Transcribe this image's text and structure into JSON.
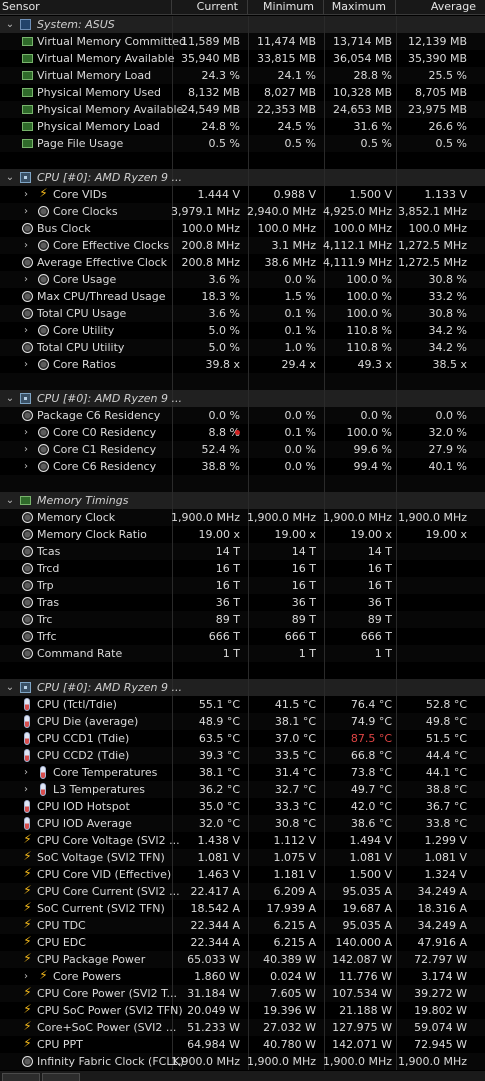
{
  "columns": [
    "Sensor",
    "Current",
    "Minimum",
    "Maximum",
    "Average"
  ],
  "rows": [
    {
      "kind": "group",
      "icon": "chip",
      "label": "System: ASUS"
    },
    {
      "kind": "item",
      "icon": "ram",
      "label": "Virtual Memory Committed",
      "values": [
        "11,589 MB",
        "11,474 MB",
        "13,714 MB",
        "12,139 MB"
      ]
    },
    {
      "kind": "item",
      "icon": "ram",
      "label": "Virtual Memory Available",
      "values": [
        "35,940 MB",
        "33,815 MB",
        "36,054 MB",
        "35,390 MB"
      ]
    },
    {
      "kind": "item",
      "icon": "ram",
      "label": "Virtual Memory Load",
      "values": [
        "24.3 %",
        "24.1 %",
        "28.8 %",
        "25.5 %"
      ]
    },
    {
      "kind": "item",
      "icon": "ram",
      "label": "Physical Memory Used",
      "values": [
        "8,132 MB",
        "8,027 MB",
        "10,328 MB",
        "8,705 MB"
      ]
    },
    {
      "kind": "item",
      "icon": "ram",
      "label": "Physical Memory Available",
      "values": [
        "24,549 MB",
        "22,353 MB",
        "24,653 MB",
        "23,975 MB"
      ]
    },
    {
      "kind": "item",
      "icon": "ram",
      "label": "Physical Memory Load",
      "values": [
        "24.8 %",
        "24.5 %",
        "31.6 %",
        "26.6 %"
      ]
    },
    {
      "kind": "item",
      "icon": "ram",
      "label": "Page File Usage",
      "values": [
        "0.5 %",
        "0.5 %",
        "0.5 %",
        "0.5 %"
      ]
    },
    {
      "kind": "spacer"
    },
    {
      "kind": "group",
      "icon": "cpu",
      "label": "CPU [#0]: AMD Ryzen 9 ..."
    },
    {
      "kind": "item",
      "expand": true,
      "icon": "bolt",
      "label": "Core VIDs",
      "values": [
        "1.444 V",
        "0.988 V",
        "1.500 V",
        "1.133 V"
      ]
    },
    {
      "kind": "item",
      "expand": true,
      "icon": "circ",
      "label": "Core Clocks",
      "values": [
        "3,979.1 MHz",
        "2,940.0 MHz",
        "4,925.0 MHz",
        "3,852.1 MHz"
      ]
    },
    {
      "kind": "item",
      "icon": "circ",
      "label": "Bus Clock",
      "values": [
        "100.0 MHz",
        "100.0 MHz",
        "100.0 MHz",
        "100.0 MHz"
      ]
    },
    {
      "kind": "item",
      "expand": true,
      "icon": "circ",
      "label": "Core Effective Clocks",
      "values": [
        "200.8 MHz",
        "3.1 MHz",
        "4,112.1 MHz",
        "1,272.5 MHz"
      ]
    },
    {
      "kind": "item",
      "icon": "circ",
      "label": "Average Effective Clock",
      "values": [
        "200.8 MHz",
        "38.6 MHz",
        "4,111.9 MHz",
        "1,272.5 MHz"
      ]
    },
    {
      "kind": "item",
      "expand": true,
      "icon": "circ",
      "label": "Core Usage",
      "values": [
        "3.6 %",
        "0.0 %",
        "100.0 %",
        "30.8 %"
      ]
    },
    {
      "kind": "item",
      "icon": "circ",
      "label": "Max CPU/Thread Usage",
      "values": [
        "18.3 %",
        "1.5 %",
        "100.0 %",
        "33.2 %"
      ]
    },
    {
      "kind": "item",
      "icon": "circ",
      "label": "Total CPU Usage",
      "values": [
        "3.6 %",
        "0.1 %",
        "100.0 %",
        "30.8 %"
      ]
    },
    {
      "kind": "item",
      "expand": true,
      "icon": "circ",
      "label": "Core Utility",
      "values": [
        "5.0 %",
        "0.1 %",
        "110.8 %",
        "34.2 %"
      ]
    },
    {
      "kind": "item",
      "icon": "circ",
      "label": "Total CPU Utility",
      "values": [
        "5.0 %",
        "1.0 %",
        "110.8 %",
        "34.2 %"
      ]
    },
    {
      "kind": "item",
      "expand": true,
      "icon": "circ",
      "label": "Core Ratios",
      "values": [
        "39.8 x",
        "29.4 x",
        "49.3 x",
        "38.5 x"
      ]
    },
    {
      "kind": "spacer"
    },
    {
      "kind": "group",
      "icon": "cpu",
      "label": "CPU [#0]: AMD Ryzen 9 ..."
    },
    {
      "kind": "item",
      "icon": "circ",
      "label": "Package C6 Residency",
      "values": [
        "0.0 %",
        "0.0 %",
        "0.0 %",
        "0.0 %"
      ]
    },
    {
      "kind": "item",
      "expand": true,
      "icon": "circ",
      "label": "Core C0 Residency",
      "values": [
        "8.8 %",
        "0.1 %",
        "100.0 %",
        "32.0 %"
      ],
      "flag": true
    },
    {
      "kind": "item",
      "expand": true,
      "icon": "circ",
      "label": "Core C1 Residency",
      "values": [
        "52.4 %",
        "0.0 %",
        "99.6 %",
        "27.9 %"
      ]
    },
    {
      "kind": "item",
      "expand": true,
      "icon": "circ",
      "label": "Core C6 Residency",
      "values": [
        "38.8 %",
        "0.0 %",
        "99.4 %",
        "40.1 %"
      ]
    },
    {
      "kind": "spacer"
    },
    {
      "kind": "group",
      "icon": "ram",
      "label": "Memory Timings"
    },
    {
      "kind": "item",
      "icon": "circ",
      "label": "Memory Clock",
      "values": [
        "1,900.0 MHz",
        "1,900.0 MHz",
        "1,900.0 MHz",
        "1,900.0 MHz"
      ]
    },
    {
      "kind": "item",
      "icon": "circ",
      "label": "Memory Clock Ratio",
      "values": [
        "19.00 x",
        "19.00 x",
        "19.00 x",
        "19.00 x"
      ]
    },
    {
      "kind": "item",
      "icon": "circ",
      "label": "Tcas",
      "values": [
        "14 T",
        "14 T",
        "14 T",
        ""
      ]
    },
    {
      "kind": "item",
      "icon": "circ",
      "label": "Trcd",
      "values": [
        "16 T",
        "16 T",
        "16 T",
        ""
      ]
    },
    {
      "kind": "item",
      "icon": "circ",
      "label": "Trp",
      "values": [
        "16 T",
        "16 T",
        "16 T",
        ""
      ]
    },
    {
      "kind": "item",
      "icon": "circ",
      "label": "Tras",
      "values": [
        "36 T",
        "36 T",
        "36 T",
        ""
      ]
    },
    {
      "kind": "item",
      "icon": "circ",
      "label": "Trc",
      "values": [
        "89 T",
        "89 T",
        "89 T",
        ""
      ]
    },
    {
      "kind": "item",
      "icon": "circ",
      "label": "Trfc",
      "values": [
        "666 T",
        "666 T",
        "666 T",
        ""
      ]
    },
    {
      "kind": "item",
      "icon": "circ",
      "label": "Command Rate",
      "values": [
        "1 T",
        "1 T",
        "1 T",
        ""
      ]
    },
    {
      "kind": "spacer"
    },
    {
      "kind": "group",
      "icon": "cpu",
      "label": "CPU [#0]: AMD Ryzen 9 ..."
    },
    {
      "kind": "item",
      "icon": "thermo",
      "label": "CPU (Tctl/Tdie)",
      "values": [
        "55.1 °C",
        "41.5 °C",
        "76.4 °C",
        "52.8 °C"
      ]
    },
    {
      "kind": "item",
      "icon": "thermo",
      "label": "CPU Die (average)",
      "values": [
        "48.9 °C",
        "38.1 °C",
        "74.9 °C",
        "49.8 °C"
      ]
    },
    {
      "kind": "item",
      "icon": "thermo",
      "label": "CPU CCD1 (Tdie)",
      "values": [
        "63.5 °C",
        "37.0 °C",
        "87.5 °C",
        "51.5 °C"
      ],
      "red_col": 2
    },
    {
      "kind": "item",
      "icon": "thermo",
      "label": "CPU CCD2 (Tdie)",
      "values": [
        "39.3 °C",
        "33.5 °C",
        "66.8 °C",
        "44.4 °C"
      ]
    },
    {
      "kind": "item",
      "expand": true,
      "icon": "thermo",
      "label": "Core Temperatures",
      "values": [
        "38.1 °C",
        "31.4 °C",
        "73.8 °C",
        "44.1 °C"
      ]
    },
    {
      "kind": "item",
      "expand": true,
      "icon": "thermo",
      "label": "L3 Temperatures",
      "values": [
        "36.2 °C",
        "32.7 °C",
        "49.7 °C",
        "38.8 °C"
      ]
    },
    {
      "kind": "item",
      "icon": "thermo",
      "label": "CPU IOD Hotspot",
      "values": [
        "35.0 °C",
        "33.3 °C",
        "42.0 °C",
        "36.7 °C"
      ]
    },
    {
      "kind": "item",
      "icon": "thermo",
      "label": "CPU IOD Average",
      "values": [
        "32.0 °C",
        "30.8 °C",
        "38.6 °C",
        "33.8 °C"
      ]
    },
    {
      "kind": "item",
      "icon": "bolt",
      "label": "CPU Core Voltage (SVI2 ...",
      "values": [
        "1.438 V",
        "1.112 V",
        "1.494 V",
        "1.299 V"
      ]
    },
    {
      "kind": "item",
      "icon": "bolt",
      "label": "SoC Voltage (SVI2 TFN)",
      "values": [
        "1.081 V",
        "1.075 V",
        "1.081 V",
        "1.081 V"
      ]
    },
    {
      "kind": "item",
      "icon": "bolt",
      "label": "CPU Core VID (Effective)",
      "values": [
        "1.463 V",
        "1.181 V",
        "1.500 V",
        "1.324 V"
      ]
    },
    {
      "kind": "item",
      "icon": "bolt",
      "label": "CPU Core Current (SVI2 ...",
      "values": [
        "22.417 A",
        "6.209 A",
        "95.035 A",
        "34.249 A"
      ]
    },
    {
      "kind": "item",
      "icon": "bolt",
      "label": "SoC Current (SVI2 TFN)",
      "values": [
        "18.542 A",
        "17.939 A",
        "19.687 A",
        "18.316 A"
      ]
    },
    {
      "kind": "item",
      "icon": "bolt",
      "label": "CPU TDC",
      "values": [
        "22.344 A",
        "6.215 A",
        "95.035 A",
        "34.249 A"
      ]
    },
    {
      "kind": "item",
      "icon": "bolt",
      "label": "CPU EDC",
      "values": [
        "22.344 A",
        "6.215 A",
        "140.000 A",
        "47.916 A"
      ]
    },
    {
      "kind": "item",
      "icon": "bolt",
      "label": "CPU Package Power",
      "values": [
        "65.033 W",
        "40.389 W",
        "142.087 W",
        "72.797 W"
      ]
    },
    {
      "kind": "item",
      "expand": true,
      "icon": "bolt",
      "label": "Core Powers",
      "values": [
        "1.860 W",
        "0.024 W",
        "11.776 W",
        "3.174 W"
      ]
    },
    {
      "kind": "item",
      "icon": "bolt",
      "label": "CPU Core Power (SVI2 T...",
      "values": [
        "31.184 W",
        "7.605 W",
        "107.534 W",
        "39.272 W"
      ]
    },
    {
      "kind": "item",
      "icon": "bolt",
      "label": "CPU SoC Power (SVI2 TFN)",
      "values": [
        "20.049 W",
        "19.396 W",
        "21.188 W",
        "19.802 W"
      ]
    },
    {
      "kind": "item",
      "icon": "bolt",
      "label": "Core+SoC Power (SVI2 ...",
      "values": [
        "51.233 W",
        "27.032 W",
        "127.975 W",
        "59.074 W"
      ]
    },
    {
      "kind": "item",
      "icon": "bolt",
      "label": "CPU PPT",
      "values": [
        "64.984 W",
        "40.780 W",
        "142.071 W",
        "72.945 W"
      ]
    },
    {
      "kind": "item",
      "icon": "circ",
      "label": "Infinity Fabric Clock (FCLK)",
      "values": [
        "1,900.0 MHz",
        "1,900.0 MHz",
        "1,900.0 MHz",
        "1,900.0 MHz"
      ]
    }
  ],
  "symbols": {
    "collapse": "⌄",
    "expand": "›",
    "bolt": "⚡"
  }
}
